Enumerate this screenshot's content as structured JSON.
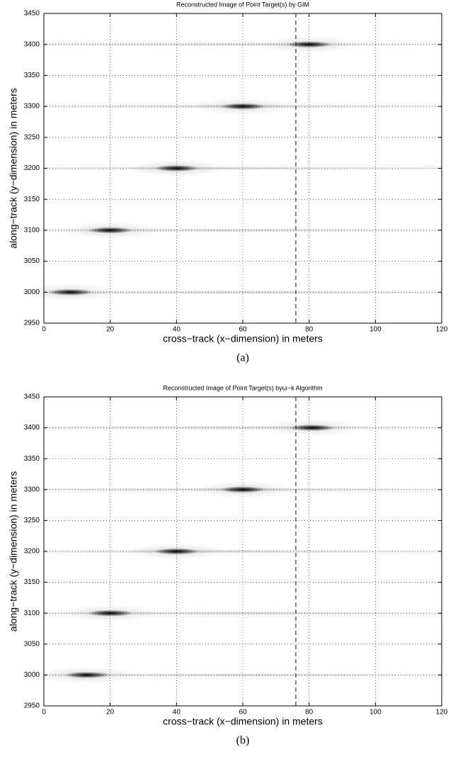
{
  "chart_data": [
    {
      "type": "scatter",
      "title": "Reconstructed Image of Point Target(s) by GIM",
      "x_label": "cross−track (x−dimension) in meters",
      "y_label": "along−track (y−dimension) in meters",
      "caption": "(a)",
      "x": [
        8,
        20,
        40,
        60,
        80
      ],
      "values": [
        3000,
        3100,
        3200,
        3300,
        3400
      ],
      "color": "#000000",
      "xlim": [
        0,
        120
      ],
      "xticks": [
        0,
        20,
        40,
        60,
        80,
        100,
        120
      ],
      "ylim": [
        2950,
        3450
      ],
      "yticks": [
        2950,
        3000,
        3050,
        3100,
        3150,
        3200,
        3250,
        3300,
        3350,
        3400,
        3450
      ],
      "grid": true,
      "vline": 76
    },
    {
      "type": "scatter",
      "title": "Reconstructed Image of Point Target(s) byω−k  Algorithm",
      "x_label": "cross−track (x−dimension) in meters",
      "y_label": "along−track (y−dimension) in meters",
      "caption": "(b)",
      "x": [
        13,
        20,
        40,
        60,
        81
      ],
      "values": [
        3000,
        3100,
        3200,
        3300,
        3400
      ],
      "color": "#000000",
      "xlim": [
        0,
        120
      ],
      "xticks": [
        0,
        20,
        40,
        60,
        80,
        100,
        120
      ],
      "ylim": [
        2950,
        3450
      ],
      "yticks": [
        2950,
        3000,
        3050,
        3100,
        3150,
        3200,
        3250,
        3300,
        3350,
        3400,
        3450
      ],
      "grid": true,
      "vline": 76
    }
  ]
}
